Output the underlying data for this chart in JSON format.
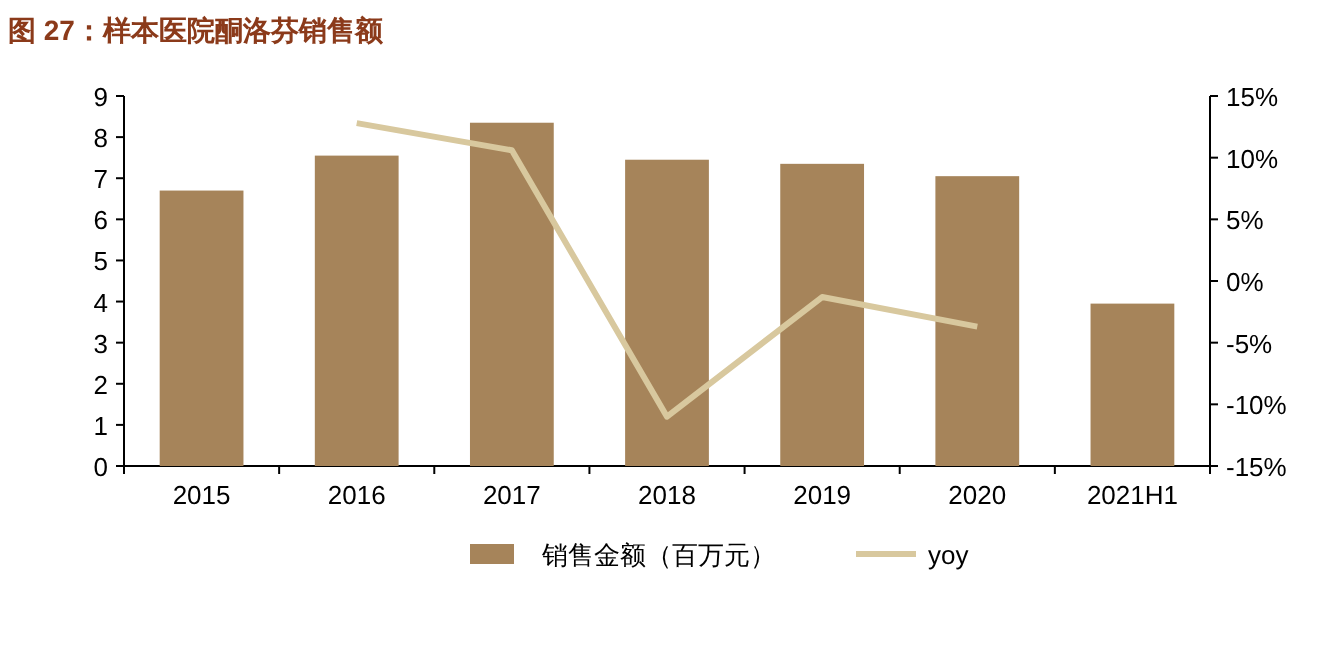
{
  "chart_data": {
    "type": "bar",
    "title": "图 27：样本医院酮洛芬销售额",
    "categories": [
      "2015",
      "2016",
      "2017",
      "2018",
      "2019",
      "2020",
      "2021H1"
    ],
    "series": [
      {
        "name": "销售金额（百万元）",
        "color": "#a6845a",
        "values": [
          6.7,
          7.55,
          8.35,
          7.45,
          7.35,
          7.05,
          3.95
        ]
      },
      {
        "name": "yoy",
        "type": "line",
        "axis": "y2",
        "color": "#d8c89e",
        "values": [
          null,
          12.8,
          10.6,
          -11,
          -1.3,
          -3.7,
          null
        ]
      }
    ],
    "ylim": [
      0,
      9
    ],
    "yticks": [
      0,
      1,
      2,
      3,
      4,
      5,
      6,
      7,
      8,
      9
    ],
    "y2lim": [
      -15,
      15
    ],
    "y2ticks": [
      {
        "value": -15,
        "label": "-15%"
      },
      {
        "value": -10,
        "label": "-10%"
      },
      {
        "value": -5,
        "label": "-5%"
      },
      {
        "value": 0,
        "label": "0%"
      },
      {
        "value": 5,
        "label": "5%"
      },
      {
        "value": 10,
        "label": "10%"
      },
      {
        "value": 15,
        "label": "15%"
      }
    ],
    "legend": "bottom",
    "grid": false,
    "marker": "none",
    "line_style": "solid"
  }
}
